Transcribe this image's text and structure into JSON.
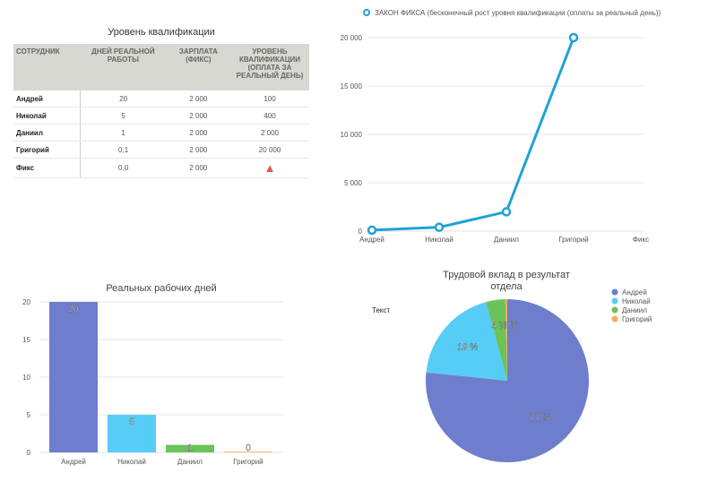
{
  "table": {
    "title": "Уровень квалификации",
    "headers": [
      "СОТРУДНИК",
      "ДНЕЙ РЕАЛЬНОЙ РАБОТЫ",
      "ЗАРПЛАТА (ФИКС)",
      "УРОВЕНЬ КВАЛИФИКАЦИИ (ОПЛАТА ЗА РЕАЛЬНЫЙ ДЕНЬ)"
    ],
    "rows": [
      [
        "Андрей",
        "20",
        "2 000",
        "100"
      ],
      [
        "Николай",
        "5",
        "2 000",
        "400"
      ],
      [
        "Даниил",
        "1",
        "2 000",
        "2 000"
      ],
      [
        "Григорий",
        "0,1",
        "2 000",
        "20 000"
      ],
      [
        "Фикс",
        "0,0",
        "2 000",
        ""
      ]
    ],
    "warning_icon": "warning-triangle-icon"
  },
  "chart_data": [
    {
      "type": "line",
      "title": "",
      "legend": "ЗАКОН ФИКСА (бесконечный рост уровня квалификации (оплаты за реальный день))",
      "categories": [
        "Андрей",
        "Николай",
        "Даниил",
        "Григорий",
        "Фикс"
      ],
      "values": [
        100,
        400,
        2000,
        20000,
        null
      ],
      "yticks": [
        "0",
        "5 000",
        "10 000",
        "15 000",
        "20 000"
      ],
      "ylim": [
        0,
        20000
      ],
      "color": "#1fa2d6"
    },
    {
      "type": "bar",
      "title": "Реальных рабочих дней",
      "categories": [
        "Андрей",
        "Николай",
        "Даниил",
        "Григорий"
      ],
      "values": [
        20,
        5,
        1,
        0.1
      ],
      "labels": [
        "20",
        "5",
        "1",
        "0"
      ],
      "yticks": [
        "0",
        "5",
        "10",
        "15",
        "20"
      ],
      "ylim": [
        0,
        20
      ],
      "colors": [
        "#6e7dcc",
        "#55cdf7",
        "#6bc25a",
        "#f7a85a"
      ]
    },
    {
      "type": "pie",
      "title": "Трудовой вклад в результат",
      "title2": "отдела",
      "side_label": "Текст",
      "categories": [
        "Андрей",
        "Николай",
        "Даниил",
        "Григорий"
      ],
      "values": [
        20,
        5,
        1,
        0.1
      ],
      "labels": [
        "77 %",
        "19 %",
        "4 %",
        "0 %"
      ],
      "colors": [
        "#6e7dcc",
        "#55cdf7",
        "#6bc25a",
        "#f7a85a"
      ]
    }
  ]
}
